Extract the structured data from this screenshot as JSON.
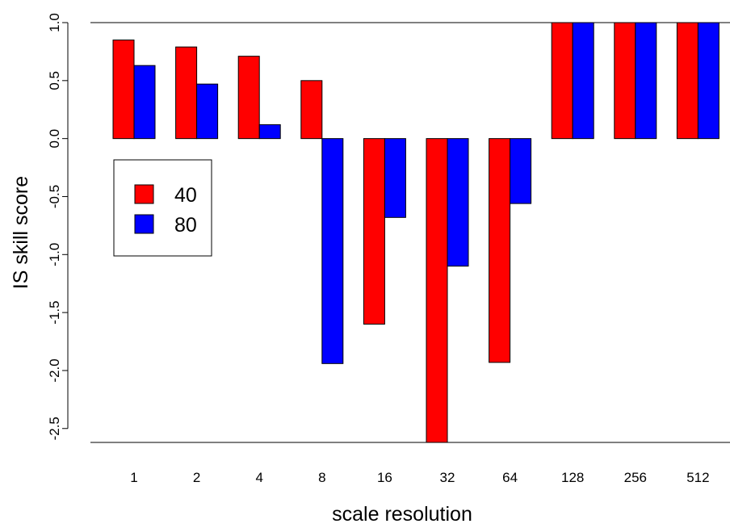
{
  "chart_data": {
    "type": "bar",
    "categories": [
      "1",
      "2",
      "4",
      "8",
      "16",
      "32",
      "64",
      "128",
      "256",
      "512"
    ],
    "series": [
      {
        "name": "40",
        "color": "#ff0000",
        "values": [
          0.85,
          0.79,
          0.71,
          0.5,
          -1.6,
          -2.62,
          -1.93,
          1.0,
          1.0,
          1.0
        ]
      },
      {
        "name": "80",
        "color": "#0000ff",
        "values": [
          0.63,
          0.47,
          0.12,
          -1.94,
          -0.68,
          -1.1,
          -0.56,
          1.0,
          1.0,
          1.0
        ]
      }
    ],
    "xlabel": "scale resolution",
    "ylabel": "IS skill score",
    "ylim": [
      -2.62,
      1.0
    ],
    "yticks": [
      "-2.5",
      "-2.0",
      "-1.5",
      "-1.0",
      "-0.5",
      "0.0",
      "0.5",
      "1.0"
    ],
    "legend": {
      "placement": "left",
      "entries": [
        "40",
        "80"
      ]
    },
    "grid": false
  }
}
